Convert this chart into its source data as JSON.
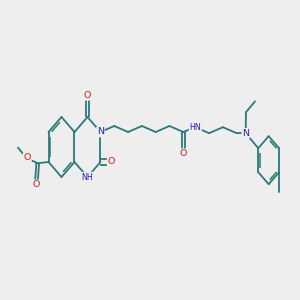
{
  "bg_color": "#eeeeee",
  "bond_color": "#2a7a7a",
  "n_color": "#2222bb",
  "o_color": "#cc2222",
  "lw": 1.3,
  "fs": 6.8,
  "fs_small": 5.8,
  "xlim": [
    0,
    10
  ],
  "ylim": [
    2.5,
    7.5
  ]
}
